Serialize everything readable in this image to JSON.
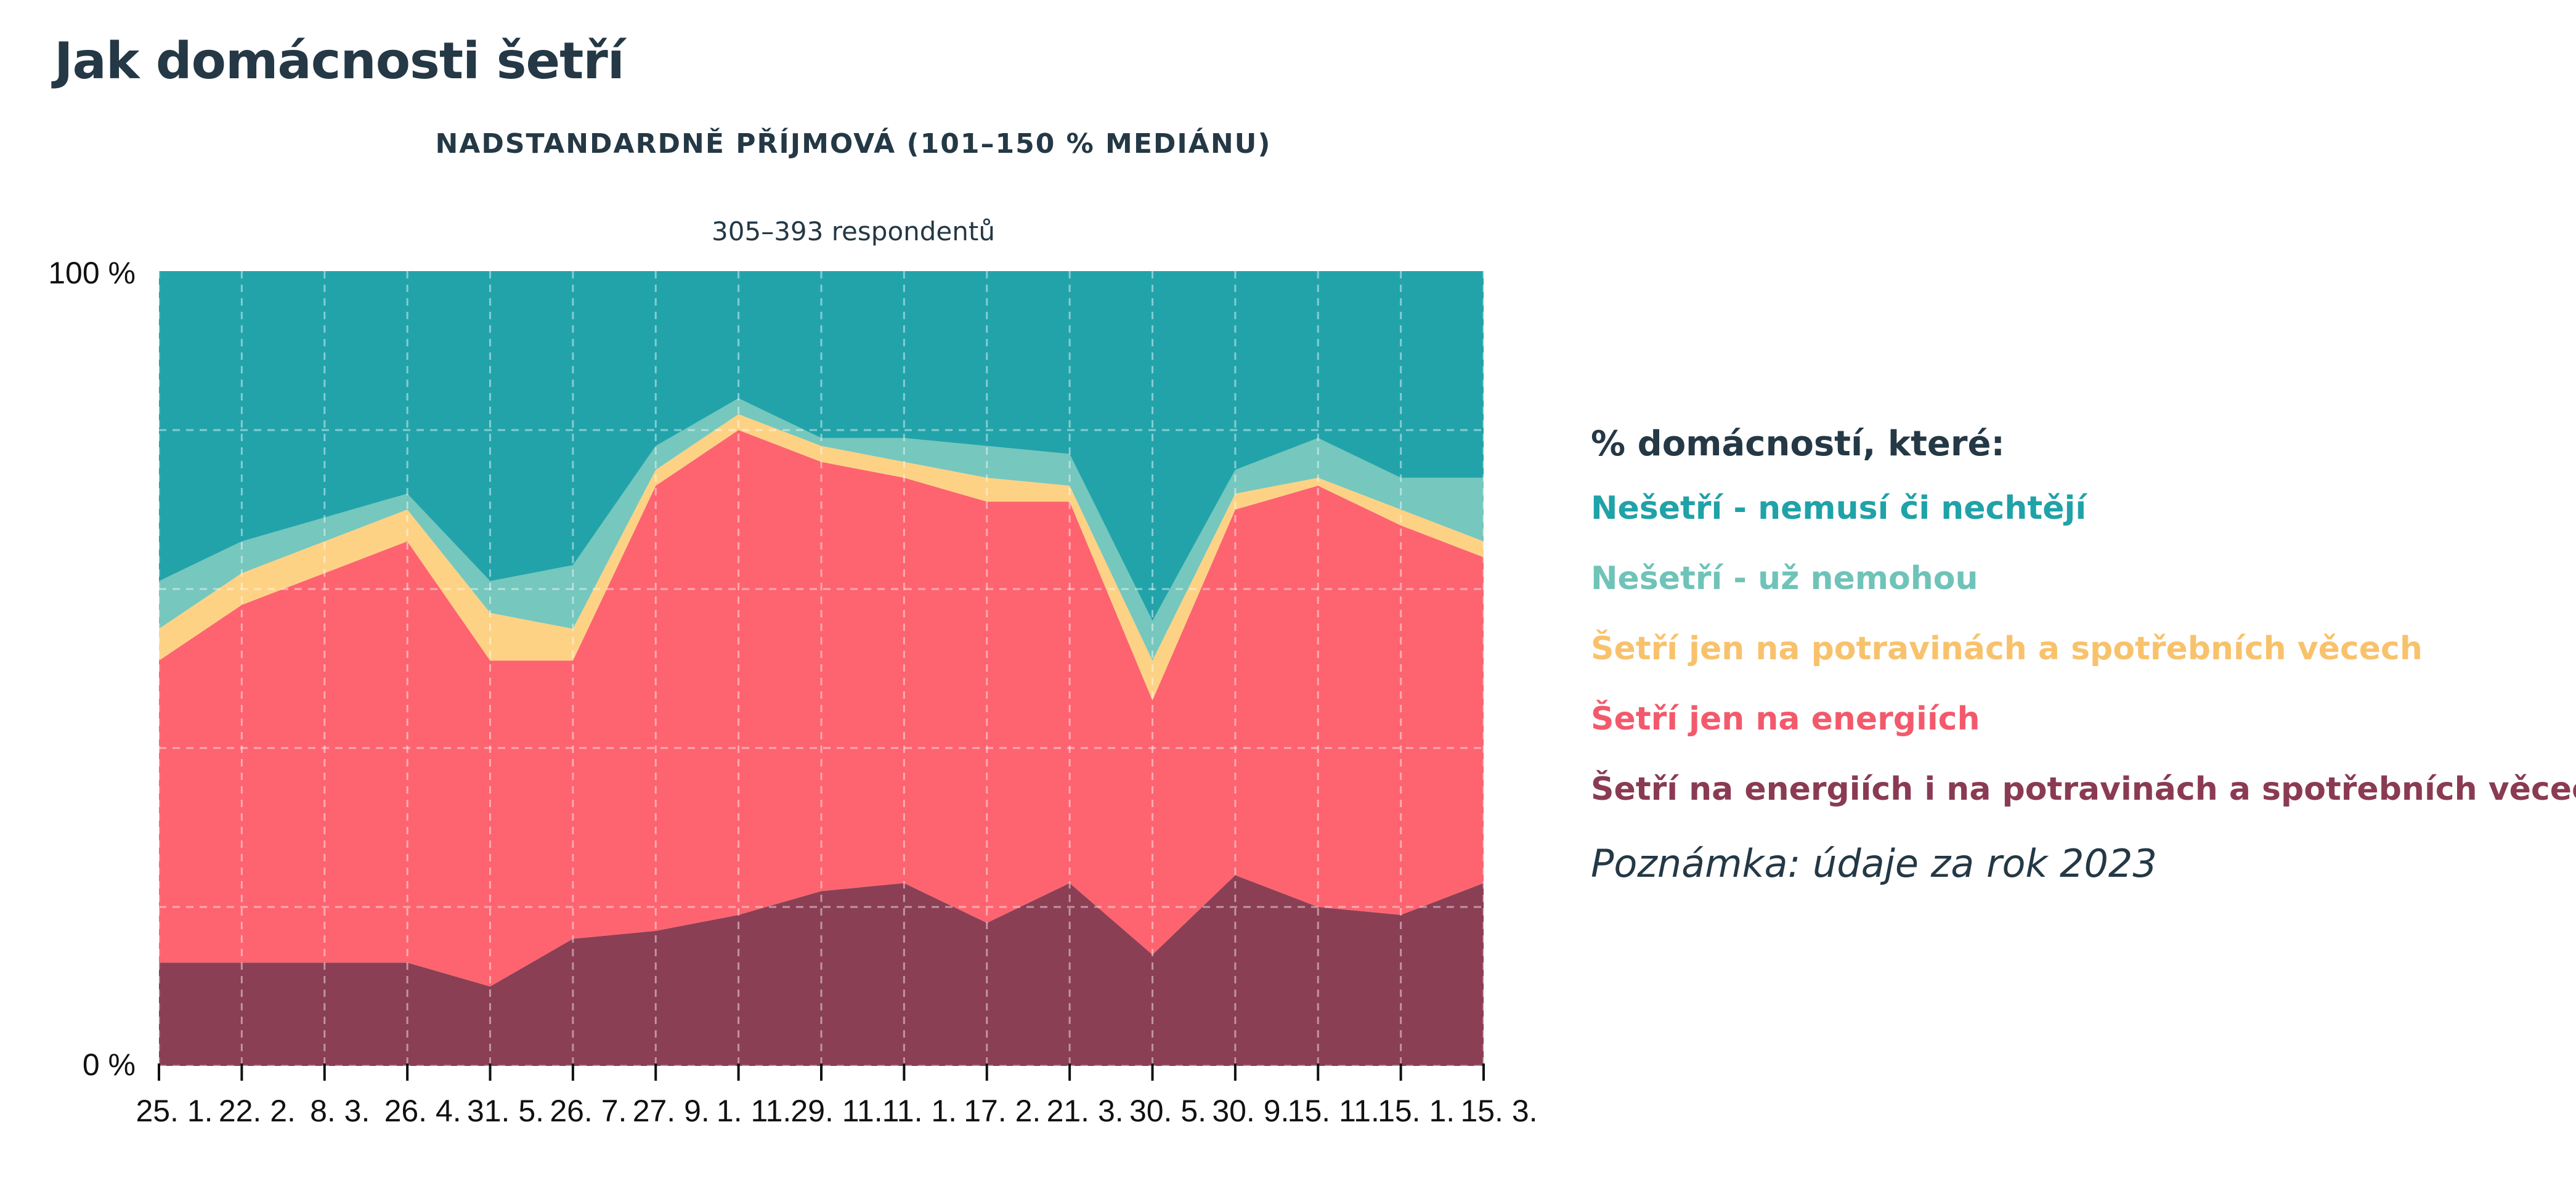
{
  "page": {
    "title": "Jak domácnosti šetří"
  },
  "chart_data": {
    "type": "area",
    "stacked": true,
    "normalized": true,
    "title": "NADSTANDARDNĚ PŘÍJMOVÁ (101–150 % MEDIÁNU)",
    "subtitle": "305–393 respondentů",
    "ylim": [
      0,
      100
    ],
    "y_ticks": [
      "0 %",
      "100 %"
    ],
    "grid": true,
    "legend_position": "right",
    "categories": [
      "25. 1.",
      "22. 2.",
      "8. 3.",
      "26. 4.",
      "31. 5.",
      "26. 7.",
      "27. 9.",
      "1. 11.",
      "29. 11.",
      "11. 1.",
      "17. 2.",
      "21. 3.",
      "30. 5.",
      "30. 9.",
      "15. 11.",
      "15. 1.",
      "15. 3."
    ],
    "series": [
      {
        "name": "Šetří na energiích i na potravinách a spotřebních věcech",
        "color": "#8b3f54",
        "values": [
          13,
          13,
          13,
          13,
          10,
          16,
          17,
          19,
          22,
          23,
          18,
          23,
          14,
          24,
          20,
          19,
          23
        ]
      },
      {
        "name": "Šetří jen na energiích",
        "color": "#fd6470",
        "values": [
          38,
          45,
          49,
          53,
          41,
          35,
          56,
          61,
          54,
          51,
          53,
          48,
          32,
          46,
          53,
          49,
          41
        ]
      },
      {
        "name": "Šetří jen na potravinách a spotřebních věcech",
        "color": "#fdd285",
        "values": [
          4,
          4,
          4,
          4,
          6,
          4,
          2,
          2,
          2,
          2,
          3,
          2,
          5,
          2,
          1,
          2,
          2
        ]
      },
      {
        "name": "Nešetří - už nemohou",
        "color": "#76c7bd",
        "values": [
          6,
          4,
          3,
          2,
          4,
          8,
          3,
          2,
          1,
          3,
          4,
          4,
          5,
          3,
          5,
          4,
          8
        ]
      },
      {
        "name": "Nešetří - nemusí či nechtějí",
        "color": "#22a3aa",
        "values": [
          39,
          34,
          31,
          28,
          39,
          37,
          22,
          16,
          21,
          21,
          22,
          23,
          44,
          25,
          21,
          26,
          26
        ]
      }
    ]
  },
  "legend": {
    "title": "% domácností, které:",
    "items": [
      {
        "label": "Nešetří - nemusí či nechtějí",
        "color": "#1fa2a8"
      },
      {
        "label": "Nešetří - už nemohou",
        "color": "#6fc3b8"
      },
      {
        "label": "Šetří jen na potravinách a spotřebních věcech",
        "color": "#f8c26c"
      },
      {
        "label": "Šetří jen na energiích",
        "color": "#f25a6c"
      },
      {
        "label": "Šetří na energiích i na potravinách a spotřebních věcech",
        "color": "#8a3b53"
      }
    ],
    "note": "Poznámka: údaje za rok 2023"
  }
}
